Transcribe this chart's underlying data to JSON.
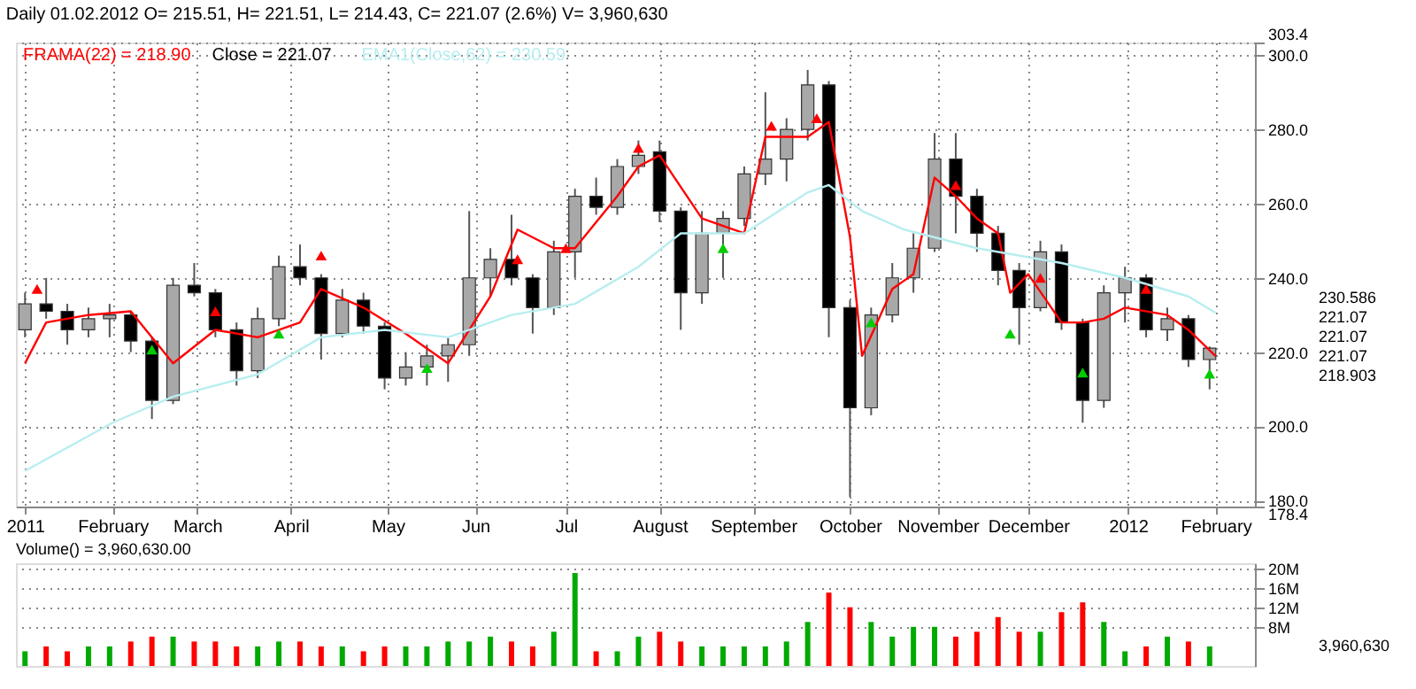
{
  "chart_data": [
    {
      "type": "candlestick",
      "title": "Daily 01.02.2012 O= 215.51, H= 221.51, L= 214.43, C= 221.07 (2.6%) V= 3,960,630",
      "x": [
        "2011-01-03",
        "2011-01-10",
        "2011-01-17",
        "2011-01-24",
        "2011-01-31",
        "2011-02-07",
        "2011-02-14",
        "2011-02-21",
        "2011-02-28",
        "2011-03-07",
        "2011-03-14",
        "2011-03-21",
        "2011-03-28",
        "2011-04-04",
        "2011-04-11",
        "2011-04-18",
        "2011-04-25",
        "2011-05-02",
        "2011-05-09",
        "2011-05-16",
        "2011-05-23",
        "2011-05-30",
        "2011-06-06",
        "2011-06-13",
        "2011-06-20",
        "2011-06-27",
        "2011-07-04",
        "2011-07-11",
        "2011-07-18",
        "2011-07-25",
        "2011-08-01",
        "2011-08-08",
        "2011-08-15",
        "2011-08-22",
        "2011-08-29",
        "2011-09-05",
        "2011-09-12",
        "2011-09-19",
        "2011-09-26",
        "2011-10-03",
        "2011-10-10",
        "2011-10-17",
        "2011-10-24",
        "2011-10-31",
        "2011-11-07",
        "2011-11-14",
        "2011-11-21",
        "2011-11-28",
        "2011-12-05",
        "2011-12-12",
        "2011-12-19",
        "2011-12-26",
        "2012-01-02",
        "2012-01-09",
        "2012-01-16",
        "2012-01-23",
        "2012-01-30"
      ],
      "ohlc": [
        [
          226,
          236,
          224,
          233
        ],
        [
          233,
          240,
          229,
          231
        ],
        [
          231,
          233,
          222,
          226
        ],
        [
          226,
          232,
          224,
          229
        ],
        [
          229,
          233,
          224,
          230
        ],
        [
          230,
          231,
          220,
          223
        ],
        [
          223,
          224,
          202,
          207
        ],
        [
          207,
          240,
          206,
          238
        ],
        [
          238,
          244,
          235,
          236
        ],
        [
          236,
          237,
          224,
          226
        ],
        [
          226,
          228,
          211,
          215
        ],
        [
          215,
          232,
          213,
          229
        ],
        [
          229,
          246,
          227,
          243
        ],
        [
          243,
          249,
          238,
          240
        ],
        [
          240,
          241,
          218,
          225
        ],
        [
          225,
          237,
          224,
          234
        ],
        [
          234,
          236,
          225,
          227
        ],
        [
          227,
          228,
          210,
          213
        ],
        [
          213,
          220,
          211,
          216
        ],
        [
          216,
          222,
          211,
          219
        ],
        [
          219,
          224,
          212,
          222
        ],
        [
          222,
          258,
          219,
          240
        ],
        [
          240,
          248,
          235,
          245
        ],
        [
          245,
          257,
          238,
          240
        ],
        [
          240,
          241,
          225,
          232
        ],
        [
          232,
          250,
          230,
          247
        ],
        [
          247,
          264,
          240,
          262
        ],
        [
          262,
          267,
          257,
          259
        ],
        [
          259,
          272,
          257,
          270
        ],
        [
          270,
          277,
          268,
          273
        ],
        [
          274,
          277,
          255,
          258
        ],
        [
          258,
          259,
          226,
          236
        ],
        [
          236,
          258,
          233,
          252
        ],
        [
          252,
          258,
          240,
          256
        ],
        [
          256,
          270,
          254,
          268
        ],
        [
          268,
          290,
          265,
          272
        ],
        [
          272,
          283,
          266,
          280
        ],
        [
          280,
          296,
          277,
          292
        ],
        [
          292,
          293,
          224,
          232
        ],
        [
          232,
          234,
          181,
          205
        ],
        [
          205,
          232,
          203,
          230
        ],
        [
          230,
          244,
          228,
          240
        ],
        [
          240,
          252,
          236,
          248
        ],
        [
          248,
          279,
          247,
          272
        ],
        [
          272,
          279,
          252,
          262
        ],
        [
          262,
          264,
          247,
          252
        ],
        [
          252,
          254,
          238,
          242
        ],
        [
          242,
          244,
          222,
          232
        ],
        [
          232,
          250,
          231,
          247
        ],
        [
          247,
          249,
          226,
          228
        ],
        [
          228,
          229,
          201,
          207
        ],
        [
          207,
          238,
          205,
          236
        ],
        [
          236,
          243,
          228,
          240
        ],
        [
          240,
          241,
          224,
          226
        ],
        [
          226,
          232,
          223,
          229
        ],
        [
          229,
          230,
          216,
          218
        ],
        [
          218,
          221.51,
          210,
          221.07
        ]
      ],
      "series": [
        {
          "type": "line",
          "name": "FRAMA(22) = 218.90",
          "color": "#ff0000",
          "line_style": "solid",
          "x": [
            "2011-01-03",
            "2011-01-10",
            "2011-01-24",
            "2011-02-07",
            "2011-02-21",
            "2011-03-07",
            "2011-03-21",
            "2011-04-04",
            "2011-04-11",
            "2011-04-25",
            "2011-05-09",
            "2011-05-23",
            "2011-06-06",
            "2011-06-15",
            "2011-06-27",
            "2011-07-04",
            "2011-07-18",
            "2011-07-25",
            "2011-08-01",
            "2011-08-15",
            "2011-08-29",
            "2011-09-05",
            "2011-09-19",
            "2011-09-26",
            "2011-10-03",
            "2011-10-07",
            "2011-10-17",
            "2011-10-24",
            "2011-10-31",
            "2011-11-07",
            "2011-11-14",
            "2011-11-21",
            "2011-11-25",
            "2011-12-01",
            "2011-12-12",
            "2011-12-19",
            "2011-12-26",
            "2012-01-02",
            "2012-01-16",
            "2012-01-23",
            "2012-02-01"
          ],
          "values": [
            217,
            228,
            230,
            231,
            217,
            226,
            224,
            228,
            237,
            232,
            225,
            217,
            235,
            253,
            248,
            248,
            262,
            270,
            273,
            256,
            252,
            278,
            278,
            282,
            251,
            219,
            237,
            241,
            267,
            262,
            256,
            252,
            236,
            241,
            228,
            228,
            229,
            232,
            230,
            226,
            218.9
          ]
        },
        {
          "type": "line",
          "name": "EMA1(Close,62) = 230.59",
          "color": "#b8eef0",
          "line_style": "solid",
          "x": [
            "2011-01-03",
            "2011-02-01",
            "2011-02-21",
            "2011-03-21",
            "2011-04-11",
            "2011-05-02",
            "2011-05-23",
            "2011-06-13",
            "2011-07-04",
            "2011-07-25",
            "2011-08-08",
            "2011-08-29",
            "2011-09-19",
            "2011-09-26",
            "2011-10-07",
            "2011-10-21",
            "2011-11-14",
            "2011-12-12",
            "2012-01-02",
            "2012-01-23",
            "2012-02-01"
          ],
          "values": [
            188,
            201,
            208,
            214,
            224,
            226,
            224,
            230,
            233,
            243,
            252,
            252,
            263,
            265,
            258,
            253,
            248,
            244,
            240,
            235,
            230.6
          ]
        },
        {
          "type": "scatter",
          "color": "#ff0000",
          "marker": "triangle",
          "x": [
            "2011-01-07",
            "2011-03-07",
            "2011-04-11",
            "2011-06-15",
            "2011-07-01",
            "2011-07-25",
            "2011-09-07",
            "2011-09-22",
            "2011-11-07",
            "2011-12-05",
            "2012-01-09"
          ],
          "values": [
            237,
            231,
            246,
            245,
            248,
            275,
            281,
            283,
            265,
            240,
            237
          ]
        },
        {
          "type": "scatter",
          "color": "#00cc00",
          "marker": "triangle",
          "x": [
            "2011-02-14",
            "2011-03-28",
            "2011-05-16",
            "2011-08-22",
            "2011-10-10",
            "2011-11-25",
            "2011-12-19",
            "2012-01-30"
          ],
          "values": [
            220.7,
            225,
            215.7,
            248,
            228,
            225,
            214.5,
            214.2
          ]
        }
      ],
      "annotations": [
        "Close = 221.07",
        "230.586",
        "221.07",
        "221.07",
        "221.07",
        "218.903"
      ],
      "ylim": [
        178.4,
        303.4
      ],
      "yticks": [
        {
          "value": 178.4,
          "label": "178.4"
        },
        {
          "value": 180,
          "label": "180.0"
        },
        {
          "value": 200,
          "label": "200.0"
        },
        {
          "value": 220,
          "label": "220.0"
        },
        {
          "value": 240,
          "label": "240.0"
        },
        {
          "value": 260,
          "label": "260.0"
        },
        {
          "value": 280,
          "label": "280.0"
        },
        {
          "value": 300,
          "label": "300.0"
        },
        {
          "value": 303.4,
          "label": "303.4"
        }
      ],
      "xlim": [
        "2010-12-31",
        "2012-02-14"
      ],
      "xticks": [
        {
          "value": "2011-01-03",
          "label": "2011"
        },
        {
          "value": "2011-02-01",
          "label": "February"
        },
        {
          "value": "2011-03-01",
          "label": "March"
        },
        {
          "value": "2011-04-01",
          "label": "April"
        },
        {
          "value": "2011-05-03",
          "label": "May"
        },
        {
          "value": "2011-06-01",
          "label": "Jun"
        },
        {
          "value": "2011-07-01",
          "label": "Jul"
        },
        {
          "value": "2011-08-01",
          "label": "August"
        },
        {
          "value": "2011-09-01",
          "label": "September"
        },
        {
          "value": "2011-10-03",
          "label": "October"
        },
        {
          "value": "2011-11-01",
          "label": "November"
        },
        {
          "value": "2011-12-01",
          "label": "December"
        },
        {
          "value": "2012-01-03",
          "label": "2012"
        },
        {
          "value": "2012-02-01",
          "label": "February"
        }
      ],
      "grid": true
    },
    {
      "type": "bar",
      "title": "Volume() = 3,960,630.00",
      "tick_labels": "y",
      "x": [
        "2011-01-03",
        "2011-01-10",
        "2011-01-17",
        "2011-01-24",
        "2011-01-31",
        "2011-02-07",
        "2011-02-14",
        "2011-02-21",
        "2011-02-28",
        "2011-03-07",
        "2011-03-14",
        "2011-03-21",
        "2011-03-28",
        "2011-04-04",
        "2011-04-11",
        "2011-04-18",
        "2011-04-25",
        "2011-05-02",
        "2011-05-09",
        "2011-05-16",
        "2011-05-23",
        "2011-05-30",
        "2011-06-06",
        "2011-06-13",
        "2011-06-20",
        "2011-06-27",
        "2011-07-04",
        "2011-07-11",
        "2011-07-18",
        "2011-07-25",
        "2011-08-01",
        "2011-08-08",
        "2011-08-15",
        "2011-08-22",
        "2011-08-29",
        "2011-09-05",
        "2011-09-12",
        "2011-09-19",
        "2011-09-26",
        "2011-10-03",
        "2011-10-10",
        "2011-10-17",
        "2011-10-24",
        "2011-10-31",
        "2011-11-07",
        "2011-11-14",
        "2011-11-21",
        "2011-11-28",
        "2011-12-05",
        "2011-12-12",
        "2011-12-19",
        "2011-12-26",
        "2012-01-02",
        "2012-01-09",
        "2012-01-16",
        "2012-01-23",
        "2012-01-30"
      ],
      "values": [
        3,
        4,
        3,
        4,
        4,
        5,
        6,
        6,
        5,
        5,
        4,
        4,
        5,
        5,
        4,
        4,
        3,
        4,
        4,
        4,
        5,
        5,
        6,
        5,
        4,
        7,
        19,
        3,
        3,
        6,
        7,
        5,
        4,
        4,
        4,
        4,
        5,
        9,
        15,
        12,
        9,
        6,
        8,
        8,
        6,
        7,
        10,
        7,
        7,
        11,
        13,
        9,
        3,
        4,
        6,
        5,
        4
      ],
      "colors": [
        "#00aa00",
        "#ff0000",
        "#ff0000",
        "#00aa00",
        "#00aa00",
        "#ff0000",
        "#ff0000",
        "#00aa00",
        "#ff0000",
        "#ff0000",
        "#ff0000",
        "#00aa00",
        "#00aa00",
        "#ff0000",
        "#ff0000",
        "#00aa00",
        "#ff0000",
        "#ff0000",
        "#00aa00",
        "#00aa00",
        "#00aa00",
        "#00aa00",
        "#00aa00",
        "#ff0000",
        "#ff0000",
        "#00aa00",
        "#00aa00",
        "#ff0000",
        "#00aa00",
        "#00aa00",
        "#ff0000",
        "#ff0000",
        "#00aa00",
        "#00aa00",
        "#00aa00",
        "#00aa00",
        "#00aa00",
        "#00aa00",
        "#ff0000",
        "#ff0000",
        "#00aa00",
        "#00aa00",
        "#00aa00",
        "#00aa00",
        "#ff0000",
        "#ff0000",
        "#ff0000",
        "#ff0000",
        "#00aa00",
        "#ff0000",
        "#ff0000",
        "#00aa00",
        "#00aa00",
        "#ff0000",
        "#00aa00",
        "#ff0000",
        "#00aa00"
      ],
      "annotations": [
        "3,960,630"
      ],
      "ylim": [
        0,
        21
      ],
      "yticks": [
        {
          "value": 8,
          "label": "8M"
        },
        {
          "value": 12,
          "label": "12M"
        },
        {
          "value": 16,
          "label": "16M"
        },
        {
          "value": 20,
          "label": "20M"
        }
      ],
      "xlim": [
        "2010-12-31",
        "2012-02-14"
      ],
      "grid": true
    }
  ]
}
